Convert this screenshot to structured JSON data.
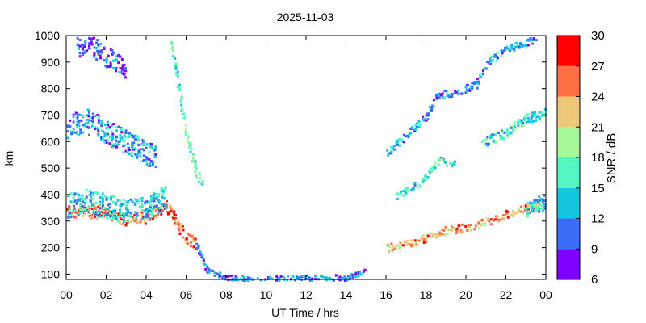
{
  "chart_data": {
    "type": "heatmap",
    "title": "2025-11-03",
    "xlabel": "UT Time / hrs",
    "ylabel": "km",
    "xlim": [
      0,
      24
    ],
    "ylim": [
      80,
      1000
    ],
    "x_ticks": [
      "00",
      "02",
      "04",
      "06",
      "08",
      "10",
      "12",
      "14",
      "16",
      "18",
      "20",
      "22",
      "00"
    ],
    "y_ticks": [
      "100",
      "200",
      "300",
      "400",
      "500",
      "600",
      "700",
      "800",
      "900",
      "1000"
    ],
    "colorbar": {
      "label": "SNR / dB",
      "range": [
        6,
        30
      ],
      "ticks": [
        "6",
        "9",
        "12",
        "15",
        "18",
        "21",
        "24",
        "27",
        "30"
      ],
      "colors": [
        "#7f00ff",
        "#3a6cf4",
        "#14c4e0",
        "#56f5c4",
        "#a6f89b",
        "#ecc877",
        "#ff7043",
        "#ff0000"
      ]
    },
    "echo_traces": [
      {
        "name": "",
        "points": [
          [
            0.0,
            340
          ],
          [
            1.0,
            345
          ],
          [
            2.0,
            330
          ],
          [
            3.0,
            310
          ],
          [
            4.0,
            320
          ],
          [
            5.0,
            360
          ],
          [
            5.5,
            300
          ],
          [
            6.0,
            240
          ],
          [
            6.5,
            210
          ]
        ],
        "spread_km": 25,
        "snr": 26
      },
      {
        "name": "",
        "points": [
          [
            0.0,
            360
          ],
          [
            1.0,
            380
          ],
          [
            2.0,
            360
          ],
          [
            3.0,
            340
          ],
          [
            4.0,
            350
          ],
          [
            5.0,
            400
          ]
        ],
        "spread_km": 45,
        "snr": 14
      },
      {
        "name": "",
        "points": [
          [
            0.0,
            660
          ],
          [
            1.0,
            680
          ],
          [
            2.0,
            640
          ],
          [
            3.0,
            600
          ],
          [
            4.0,
            560
          ],
          [
            4.5,
            540
          ]
        ],
        "spread_km": 45,
        "snr": 12
      },
      {
        "name": "",
        "points": [
          [
            0.5,
            960
          ],
          [
            1.0,
            980
          ],
          [
            2.0,
            920
          ],
          [
            3.0,
            880
          ]
        ],
        "spread_km": 40,
        "snr": 9
      },
      {
        "name": "",
        "points": [
          [
            5.2,
            980
          ],
          [
            5.5,
            850
          ],
          [
            5.8,
            700
          ],
          [
            6.2,
            560
          ],
          [
            6.5,
            480
          ],
          [
            6.8,
            440
          ]
        ],
        "spread_km": 25,
        "snr": 17
      },
      {
        "name": "",
        "points": [
          [
            6.5,
            210
          ],
          [
            7.0,
            120
          ],
          [
            8.0,
            90
          ],
          [
            10.0,
            84
          ],
          [
            12.0,
            90
          ],
          [
            14.0,
            90
          ],
          [
            15.0,
            120
          ]
        ],
        "spread_km": 10,
        "snr": 11
      },
      {
        "name": "",
        "points": [
          [
            16.0,
            200
          ],
          [
            17.0,
            220
          ],
          [
            18.0,
            240
          ],
          [
            19.0,
            270
          ],
          [
            20.0,
            280
          ],
          [
            21.0,
            300
          ],
          [
            22.0,
            330
          ],
          [
            23.0,
            350
          ],
          [
            24.0,
            370
          ]
        ],
        "spread_km": 15,
        "snr": 24
      },
      {
        "name": "",
        "points": [
          [
            16.5,
            400
          ],
          [
            17.5,
            440
          ],
          [
            18.0,
            470
          ],
          [
            18.5,
            530
          ],
          [
            19.5,
            520
          ]
        ],
        "spread_km": 12,
        "snr": 15
      },
      {
        "name": "",
        "points": [
          [
            16.0,
            560
          ],
          [
            17.0,
            630
          ],
          [
            18.0,
            700
          ],
          [
            18.5,
            780
          ],
          [
            19.5,
            790
          ],
          [
            20.5,
            820
          ],
          [
            21.0,
            900
          ],
          [
            22.0,
            950
          ],
          [
            23.5,
            995
          ]
        ],
        "spread_km": 14,
        "snr": 12
      },
      {
        "name": "",
        "points": [
          [
            20.8,
            600
          ],
          [
            21.5,
            620
          ],
          [
            22.0,
            640
          ],
          [
            23.0,
            690
          ],
          [
            24.0,
            710
          ]
        ],
        "spread_km": 18,
        "snr": 15
      },
      {
        "name": "",
        "points": [
          [
            23.0,
            350
          ],
          [
            24.0,
            380
          ]
        ],
        "spread_km": 30,
        "snr": 14
      }
    ],
    "grid": false,
    "legend": "colorbar right"
  }
}
